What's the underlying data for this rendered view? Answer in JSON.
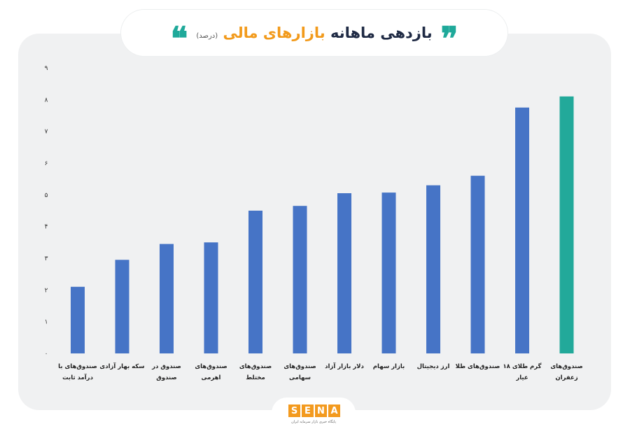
{
  "header": {
    "title_part1": "بازدهی ماهانه",
    "title_part2": "بازارهای مالی",
    "unit": "(درصد)",
    "quote_open": "❞",
    "quote_close": "❝"
  },
  "chart_data": {
    "type": "bar",
    "title": "بازدهی ماهانه بازارهای مالی",
    "unit": "(درصد)",
    "ylim": [
      0,
      9
    ],
    "yticks": [
      "۰",
      "۱",
      "۲",
      "۳",
      "۴",
      "۵",
      "۶",
      "۷",
      "۸",
      "۹"
    ],
    "grid": false,
    "categories": [
      [
        "صندوق‌های با",
        "درآمد ثابت"
      ],
      [
        "سکه بهار آزادی"
      ],
      [
        "صندوق در",
        "صندوق"
      ],
      [
        "صندوق‌های",
        "اهرمی"
      ],
      [
        "صندوق‌های",
        "مختلط"
      ],
      [
        "صندوق‌های",
        "سهامی"
      ],
      [
        "دلار بازار آزاد"
      ],
      [
        "بازار سهام"
      ],
      [
        "ارز دیجیتال"
      ],
      [
        "صندوق‌های طلا"
      ],
      [
        "گرم طلای ۱۸",
        "عیار"
      ],
      [
        "صندوق‌های",
        "زعفران"
      ]
    ],
    "values": [
      2.1,
      2.95,
      3.45,
      3.5,
      4.5,
      4.65,
      5.05,
      5.07,
      5.3,
      5.6,
      7.75,
      8.1
    ],
    "colors": [
      "#4674c6",
      "#4674c6",
      "#4674c6",
      "#4674c6",
      "#4674c6",
      "#4674c6",
      "#4674c6",
      "#4674c6",
      "#4674c6",
      "#4674c6",
      "#4674c6",
      "#22a99a"
    ],
    "highlight_color": "#22a99a",
    "bar_color": "#4674c6"
  },
  "logo": {
    "letters": [
      "S",
      "E",
      "N",
      "A"
    ],
    "tagline": "پایگاه خبری بازار سرمایه ایران"
  }
}
